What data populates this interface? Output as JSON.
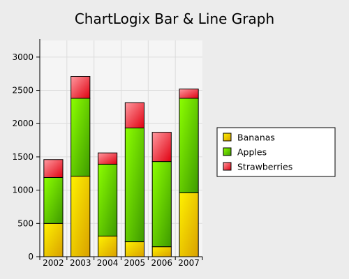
{
  "chart_data": {
    "type": "bar",
    "stacked": true,
    "title": "ChartLogix Bar & Line Graph",
    "xlabel": "",
    "ylabel": "",
    "categories": [
      "2002",
      "2003",
      "2004",
      "2005",
      "2006",
      "2007"
    ],
    "series": [
      {
        "name": "Bananas",
        "values": [
          500,
          1210,
          310,
          225,
          150,
          960
        ],
        "color_light": "#fff200",
        "color_dark": "#d9a000"
      },
      {
        "name": "Apples",
        "values": [
          690,
          1170,
          1080,
          1710,
          1280,
          1420
        ],
        "color_light": "#8cff00",
        "color_dark": "#3e9a00"
      },
      {
        "name": "Strawberries",
        "values": [
          270,
          330,
          170,
          380,
          440,
          140
        ],
        "color_light": "#ff9aa0",
        "color_dark": "#e00010"
      }
    ],
    "ylim": [
      0,
      3250
    ],
    "yticks": [
      0,
      500,
      1000,
      1500,
      2000,
      2500,
      3000
    ],
    "grid": true,
    "legend_position": "right"
  },
  "colors": {
    "background": "#ececec",
    "plot_background": "#f5f5f5",
    "gridline": "#dcdcdc",
    "bar_outline": "#000000"
  }
}
